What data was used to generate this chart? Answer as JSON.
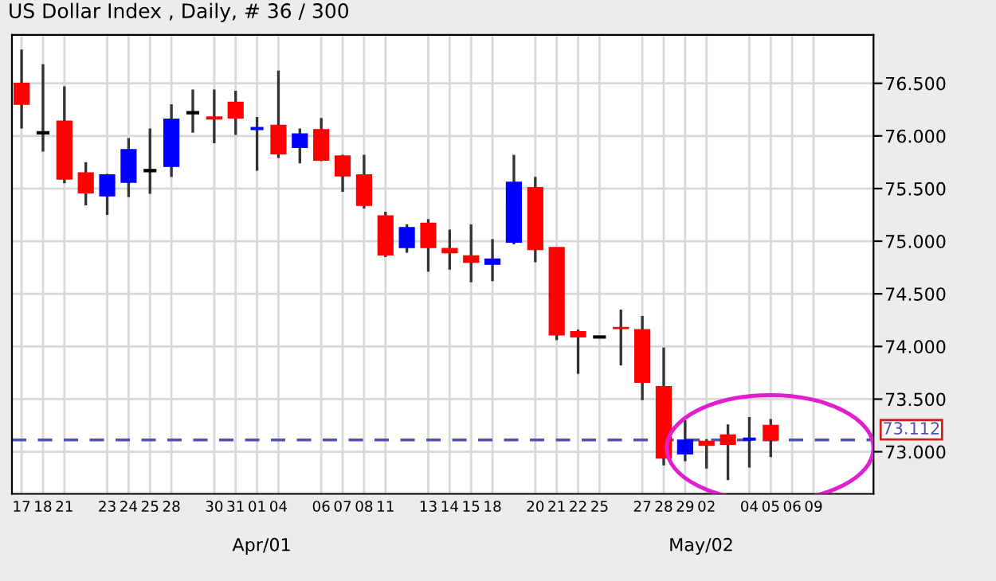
{
  "chart_data": {
    "type": "candlestick",
    "title": "US Dollar Index , Daily, # 36 / 300",
    "categories": [
      "17",
      "18",
      "21",
      null,
      "23",
      "24",
      "25",
      "28",
      null,
      "30",
      "31",
      "01",
      "04",
      null,
      "06",
      "07",
      "08",
      "11",
      null,
      "13",
      "14",
      "15",
      "18",
      null,
      "20",
      "21",
      "22",
      "25",
      null,
      "27",
      "28",
      "29",
      "02",
      null,
      "04",
      "05",
      "06",
      "09",
      null,
      null
    ],
    "ohlc": [
      [
        76.5,
        76.82,
        76.07,
        76.3
      ],
      [
        76.03,
        76.68,
        75.85,
        76.03
      ],
      [
        76.14,
        76.47,
        75.55,
        75.59
      ],
      [
        75.65,
        75.75,
        75.34,
        75.46
      ],
      [
        75.43,
        75.64,
        75.25,
        75.63
      ],
      [
        75.56,
        75.98,
        75.42,
        75.87
      ],
      [
        75.67,
        76.07,
        75.45,
        75.67
      ],
      [
        75.71,
        76.3,
        75.61,
        76.16
      ],
      [
        76.22,
        76.44,
        76.03,
        76.22
      ],
      [
        76.18,
        76.44,
        75.93,
        76.16
      ],
      [
        76.32,
        76.43,
        76.01,
        76.17
      ],
      [
        76.07,
        76.18,
        75.67,
        76.07
      ],
      [
        76.1,
        76.62,
        75.79,
        75.83
      ],
      [
        75.89,
        76.07,
        75.74,
        76.02
      ],
      [
        76.06,
        76.17,
        75.76,
        75.77
      ],
      [
        75.81,
        75.82,
        75.47,
        75.62
      ],
      [
        75.63,
        75.82,
        75.31,
        75.34
      ],
      [
        75.24,
        75.28,
        74.85,
        74.87
      ],
      [
        74.94,
        75.16,
        74.89,
        75.13
      ],
      [
        75.17,
        75.21,
        74.71,
        74.94
      ],
      [
        74.93,
        75.11,
        74.73,
        74.89
      ],
      [
        74.86,
        75.16,
        74.61,
        74.8
      ],
      [
        74.78,
        75.02,
        74.62,
        74.83
      ],
      [
        74.99,
        75.82,
        74.97,
        75.56
      ],
      [
        75.51,
        75.61,
        74.8,
        74.92
      ],
      [
        74.94,
        74.94,
        74.06,
        74.11
      ],
      [
        74.14,
        74.16,
        73.74,
        74.09
      ],
      [
        74.09,
        74.1,
        74.08,
        74.09
      ],
      [
        74.18,
        74.35,
        73.82,
        74.17
      ],
      [
        74.16,
        74.29,
        73.49,
        73.66
      ],
      [
        73.62,
        73.99,
        72.87,
        72.94
      ],
      [
        72.98,
        73.3,
        72.91,
        73.11
      ],
      [
        73.1,
        73.12,
        72.84,
        73.06
      ],
      [
        73.16,
        73.26,
        72.73,
        73.07
      ],
      [
        73.12,
        73.33,
        72.85,
        73.13
      ],
      [
        73.25,
        73.31,
        72.95,
        73.11
      ],
      null,
      null,
      null,
      null
    ],
    "colors": [
      "#ff0000",
      "#000000",
      "#ff0000",
      "#ff0000",
      "#0000ff",
      "#0000ff",
      "#000000",
      "#0000ff",
      "#000000",
      "#ff0000",
      "#ff0000",
      "#0000ff",
      "#ff0000",
      "#0000ff",
      "#ff0000",
      "#ff0000",
      "#ff0000",
      "#ff0000",
      "#0000ff",
      "#ff0000",
      "#ff0000",
      "#ff0000",
      "#0000ff",
      "#0000ff",
      "#ff0000",
      "#ff0000",
      "#ff0000",
      "#000000",
      "#ff0000",
      "#ff0000",
      "#ff0000",
      "#0000ff",
      "#ff0000",
      "#ff0000",
      "#0000ff",
      "#ff0000",
      null,
      null,
      null,
      null
    ],
    "ylim": [
      72.6,
      76.96
    ],
    "yticks": [
      {
        "value": 73,
        "label": "73.000"
      },
      {
        "value": 73.5,
        "label": "73.500"
      },
      {
        "value": 74,
        "label": "74.000"
      },
      {
        "value": 74.5,
        "label": "74.500"
      },
      {
        "value": 75,
        "label": "75.000"
      },
      {
        "value": 75.5,
        "label": "75.500"
      },
      {
        "value": 76,
        "label": "76.000"
      },
      {
        "value": 76.5,
        "label": "76.500"
      }
    ],
    "ref_lines": [
      {
        "axis": "y",
        "value": 73.112,
        "label": "73.112",
        "color": "#5050b0",
        "line_style": "dashed"
      }
    ],
    "annotations": [
      "Apr/01",
      "May/02"
    ],
    "grid": true
  }
}
